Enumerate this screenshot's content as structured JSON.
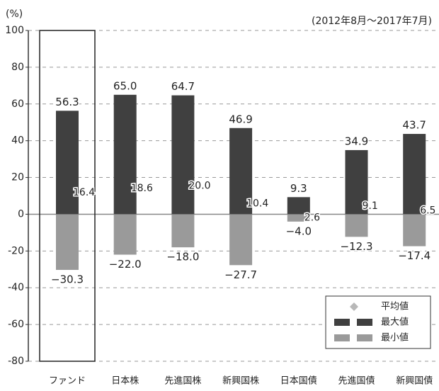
{
  "chart_data": {
    "type": "bar",
    "unit_label": "(%)",
    "subtitle": "(2012年8月～2017年7月)",
    "categories": [
      "ファンド",
      "日本株",
      "先進国株",
      "新興国株",
      "日本国債",
      "先進国債",
      "新興国債"
    ],
    "series": [
      {
        "name": "平均値",
        "color": "#b8b8b8",
        "marker": "diamond",
        "values": [
          16.4,
          18.6,
          20.0,
          10.4,
          2.6,
          9.1,
          6.5
        ],
        "value_labels": [
          "16.4",
          "18.6",
          "20.0",
          "10.4",
          "2.6",
          "9.1",
          "6.5"
        ]
      },
      {
        "name": "最大値",
        "color": "#404040",
        "values": [
          56.3,
          65.0,
          64.7,
          46.9,
          9.3,
          34.9,
          43.7
        ],
        "value_labels": [
          "56.3",
          "65.0",
          "64.7",
          "46.9",
          "9.3",
          "34.9",
          "43.7"
        ]
      },
      {
        "name": "最小値",
        "color": "#9a9a9a",
        "values": [
          -30.3,
          -22.0,
          -18.0,
          -27.7,
          -4.0,
          -12.3,
          -17.4
        ],
        "value_labels": [
          "−30.3",
          "−22.0",
          "−18.0",
          "−27.7",
          "−4.0",
          "−12.3",
          "−17.4"
        ]
      }
    ],
    "ylim": [
      -80,
      100
    ],
    "yticks": [
      -80,
      -60,
      -40,
      -20,
      0,
      20,
      40,
      60,
      80,
      100
    ],
    "grid": true
  }
}
